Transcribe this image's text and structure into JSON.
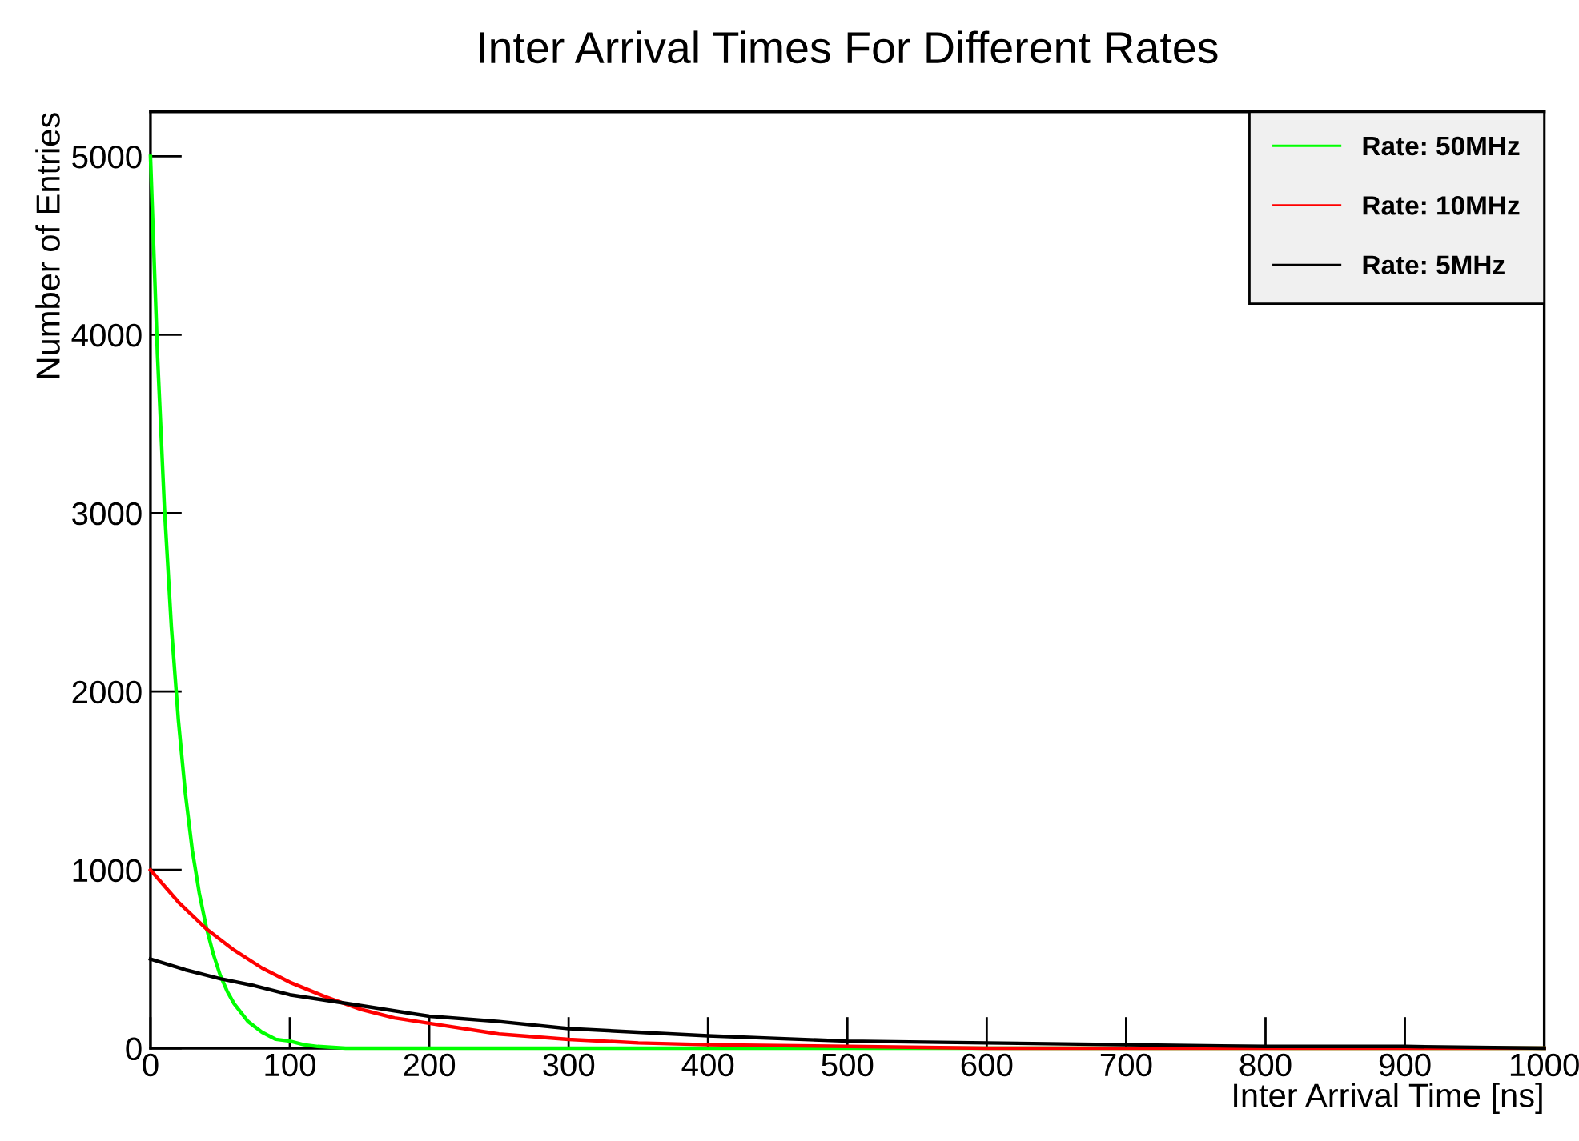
{
  "chart_data": {
    "type": "line",
    "title": "Inter Arrival Times For Different Rates",
    "xlabel": "Inter Arrival Time [ns]",
    "ylabel": "Number of Entries",
    "series": [
      {
        "name": "Rate: 50MHz",
        "color": "#00ff00",
        "x": [
          0,
          5,
          10,
          15,
          20,
          25,
          30,
          35,
          40,
          45,
          50,
          55,
          60,
          70,
          80,
          90,
          100,
          110,
          120,
          140,
          160,
          200,
          300,
          500,
          1000
        ],
        "values": [
          5000,
          3890,
          3030,
          2360,
          1840,
          1430,
          1110,
          870,
          680,
          530,
          410,
          320,
          250,
          150,
          90,
          50,
          40,
          20,
          10,
          0,
          0,
          0,
          0,
          0,
          0
        ]
      },
      {
        "name": "Rate: 10MHz",
        "color": "#ff0000",
        "x": [
          0,
          20,
          40,
          60,
          80,
          100,
          125,
          150,
          175,
          200,
          250,
          300,
          350,
          400,
          500,
          600,
          700,
          800,
          1000
        ],
        "values": [
          1000,
          820,
          670,
          550,
          450,
          370,
          290,
          220,
          170,
          140,
          80,
          50,
          30,
          20,
          10,
          0,
          0,
          0,
          0
        ]
      },
      {
        "name": "Rate: 5MHz",
        "color": "#000000",
        "x": [
          0,
          25,
          50,
          75,
          100,
          150,
          200,
          250,
          300,
          400,
          500,
          600,
          700,
          800,
          900,
          1000
        ],
        "values": [
          500,
          440,
          390,
          350,
          300,
          240,
          180,
          150,
          110,
          70,
          40,
          30,
          20,
          10,
          10,
          0
        ]
      }
    ],
    "xlim": [
      0,
      1000
    ],
    "ylim": [
      0,
      5250
    ],
    "xticks": [
      0,
      100,
      200,
      300,
      400,
      500,
      600,
      700,
      800,
      900,
      1000
    ],
    "yticks": [
      0,
      1000,
      2000,
      3000,
      4000,
      5000
    ],
    "legend": "top right",
    "grid": false
  }
}
